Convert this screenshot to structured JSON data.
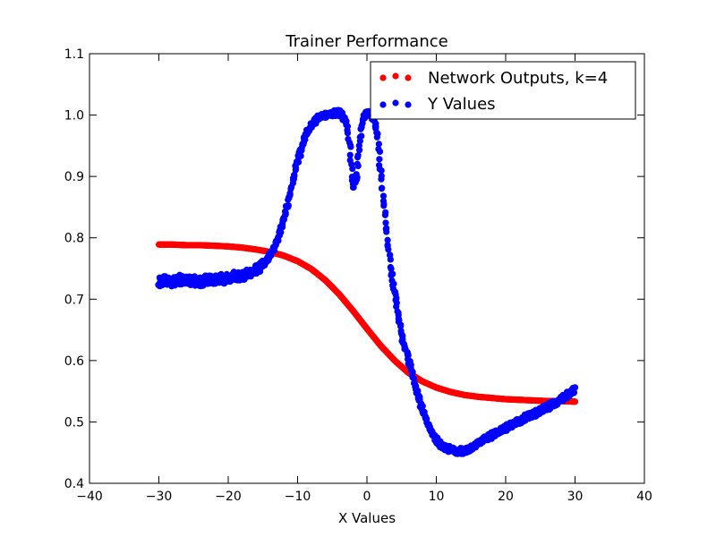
{
  "chart_data": {
    "type": "scatter",
    "title": "Trainer Performance",
    "xlabel": "X Values",
    "ylabel": "",
    "xlim": [
      -40,
      40
    ],
    "ylim": [
      0.4,
      1.1
    ],
    "xticks": [
      -40,
      -30,
      -20,
      -10,
      0,
      10,
      20,
      30,
      40
    ],
    "yticks": [
      0.4,
      0.5,
      0.6,
      0.7,
      0.8,
      0.9,
      1.0,
      1.1
    ],
    "xtick_labels": [
      "−40",
      "−30",
      "−20",
      "−10",
      "0",
      "10",
      "20",
      "30",
      "40"
    ],
    "ytick_labels": [
      "0.4",
      "0.5",
      "0.6",
      "0.7",
      "0.8",
      "0.9",
      "1.0",
      "1.1"
    ],
    "grid": false,
    "legend": "top-right",
    "series": [
      {
        "name": "Network Outputs, k=4",
        "color": "#ff0000",
        "points": [
          [
            -30,
            0.789
          ],
          [
            -28,
            0.789
          ],
          [
            -26,
            0.788
          ],
          [
            -24,
            0.788
          ],
          [
            -22,
            0.787
          ],
          [
            -20,
            0.786
          ],
          [
            -18,
            0.784
          ],
          [
            -16,
            0.781
          ],
          [
            -14,
            0.777
          ],
          [
            -12,
            0.771
          ],
          [
            -10,
            0.762
          ],
          [
            -8,
            0.749
          ],
          [
            -6,
            0.731
          ],
          [
            -4,
            0.708
          ],
          [
            -2,
            0.681
          ],
          [
            0,
            0.652
          ],
          [
            2,
            0.624
          ],
          [
            4,
            0.6
          ],
          [
            6,
            0.58
          ],
          [
            8,
            0.566
          ],
          [
            10,
            0.556
          ],
          [
            12,
            0.549
          ],
          [
            14,
            0.544
          ],
          [
            16,
            0.541
          ],
          [
            18,
            0.539
          ],
          [
            20,
            0.537
          ],
          [
            22,
            0.536
          ],
          [
            24,
            0.535
          ],
          [
            26,
            0.534
          ],
          [
            28,
            0.534
          ],
          [
            30,
            0.533
          ]
        ]
      },
      {
        "name": "Y Values",
        "color": "#0000ff",
        "points": [
          [
            -30,
            0.727
          ],
          [
            -29,
            0.733
          ],
          [
            -28,
            0.728
          ],
          [
            -27,
            0.732
          ],
          [
            -26,
            0.729
          ],
          [
            -25,
            0.731
          ],
          [
            -24,
            0.728
          ],
          [
            -23,
            0.733
          ],
          [
            -22,
            0.731
          ],
          [
            -21,
            0.733
          ],
          [
            -20,
            0.734
          ],
          [
            -19,
            0.737
          ],
          [
            -18,
            0.738
          ],
          [
            -17,
            0.742
          ],
          [
            -16,
            0.748
          ],
          [
            -15,
            0.757
          ],
          [
            -14,
            0.77
          ],
          [
            -13,
            0.793
          ],
          [
            -12,
            0.83
          ],
          [
            -11,
            0.875
          ],
          [
            -10,
            0.925
          ],
          [
            -9,
            0.962
          ],
          [
            -8,
            0.985
          ],
          [
            -7,
            0.995
          ],
          [
            -6,
            1.0
          ],
          [
            -5,
            1.003
          ],
          [
            -4,
            1.004
          ],
          [
            -3,
            0.99
          ],
          [
            -2.5,
            0.955
          ],
          [
            -2,
            0.88
          ],
          [
            -1.5,
            0.9
          ],
          [
            -1,
            0.96
          ],
          [
            -0.5,
            0.995
          ],
          [
            0,
            1.003
          ],
          [
            0.5,
            1.0
          ],
          [
            1,
            0.995
          ],
          [
            1.5,
            0.97
          ],
          [
            2,
            0.905
          ],
          [
            2.5,
            0.85
          ],
          [
            3,
            0.79
          ],
          [
            3.5,
            0.745
          ],
          [
            4,
            0.71
          ],
          [
            4.5,
            0.675
          ],
          [
            5,
            0.64
          ],
          [
            6,
            0.6
          ],
          [
            7,
            0.56
          ],
          [
            8,
            0.52
          ],
          [
            9,
            0.49
          ],
          [
            10,
            0.47
          ],
          [
            11,
            0.46
          ],
          [
            12,
            0.455
          ],
          [
            13,
            0.452
          ],
          [
            14,
            0.453
          ],
          [
            15,
            0.458
          ],
          [
            16,
            0.465
          ],
          [
            17,
            0.472
          ],
          [
            18,
            0.478
          ],
          [
            19,
            0.484
          ],
          [
            20,
            0.49
          ],
          [
            21,
            0.496
          ],
          [
            22,
            0.502
          ],
          [
            23,
            0.508
          ],
          [
            24,
            0.512
          ],
          [
            25,
            0.518
          ],
          [
            26,
            0.524
          ],
          [
            27,
            0.53
          ],
          [
            28,
            0.537
          ],
          [
            29,
            0.545
          ],
          [
            30,
            0.553
          ]
        ]
      }
    ]
  }
}
